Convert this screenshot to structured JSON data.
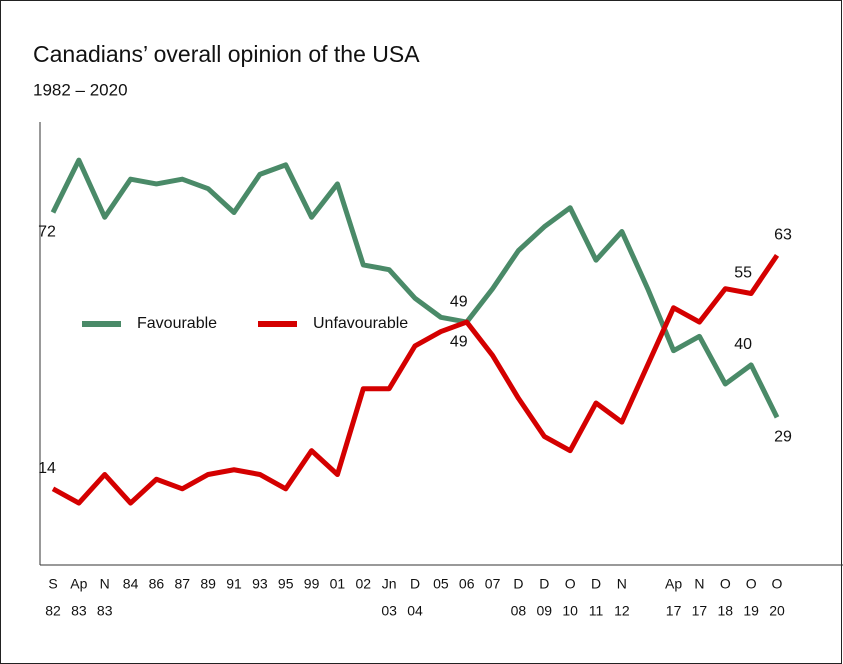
{
  "chart_data": {
    "type": "line",
    "title": "Canadians’ overall opinion of the USA",
    "subtitle": "1982 – 2020",
    "categories": [
      [
        "S",
        "82"
      ],
      [
        "Ap",
        "83"
      ],
      [
        "N",
        "83"
      ],
      [
        "84"
      ],
      [
        "86"
      ],
      [
        "87"
      ],
      [
        "89"
      ],
      [
        "91"
      ],
      [
        "93"
      ],
      [
        "95"
      ],
      [
        "99"
      ],
      [
        "01"
      ],
      [
        "02"
      ],
      [
        "Jn",
        "03"
      ],
      [
        "D",
        "04"
      ],
      [
        "05"
      ],
      [
        "06"
      ],
      [
        "07"
      ],
      [
        "D",
        "08"
      ],
      [
        "D",
        "09"
      ],
      [
        "O",
        "10"
      ],
      [
        "D",
        "11"
      ],
      [
        "N",
        "12"
      ],
      null,
      [
        "Ap",
        "17"
      ],
      [
        "N",
        "17"
      ],
      [
        "O",
        "18"
      ],
      [
        "O",
        "19"
      ],
      [
        "O",
        "20"
      ]
    ],
    "series": [
      {
        "name": "Favourable",
        "color": "#4a8a68",
        "values": [
          72,
          83,
          71,
          79,
          78,
          79,
          77,
          72,
          80,
          82,
          71,
          78,
          61,
          60,
          54,
          50,
          49,
          56,
          64,
          69,
          73,
          62,
          68,
          56,
          43,
          46,
          36,
          40,
          29
        ],
        "value_labels": [
          "72",
          null,
          null,
          null,
          null,
          null,
          null,
          null,
          null,
          null,
          null,
          null,
          null,
          null,
          null,
          null,
          "49",
          null,
          null,
          null,
          null,
          null,
          null,
          null,
          null,
          null,
          null,
          "40",
          "29"
        ]
      },
      {
        "name": "Unfavourable",
        "color": "#d40000",
        "values": [
          14,
          11,
          17,
          11,
          16,
          14,
          17,
          18,
          17,
          14,
          22,
          17,
          35,
          35,
          44,
          47,
          49,
          42,
          33,
          25,
          22,
          32,
          28,
          40,
          52,
          49,
          56,
          55,
          63
        ],
        "value_labels": [
          "14",
          null,
          null,
          null,
          null,
          null,
          null,
          null,
          null,
          null,
          null,
          null,
          null,
          null,
          null,
          null,
          "49",
          null,
          null,
          null,
          null,
          null,
          null,
          null,
          null,
          null,
          null,
          "55",
          "63"
        ]
      }
    ],
    "ylim": [
      -2,
      91
    ]
  }
}
